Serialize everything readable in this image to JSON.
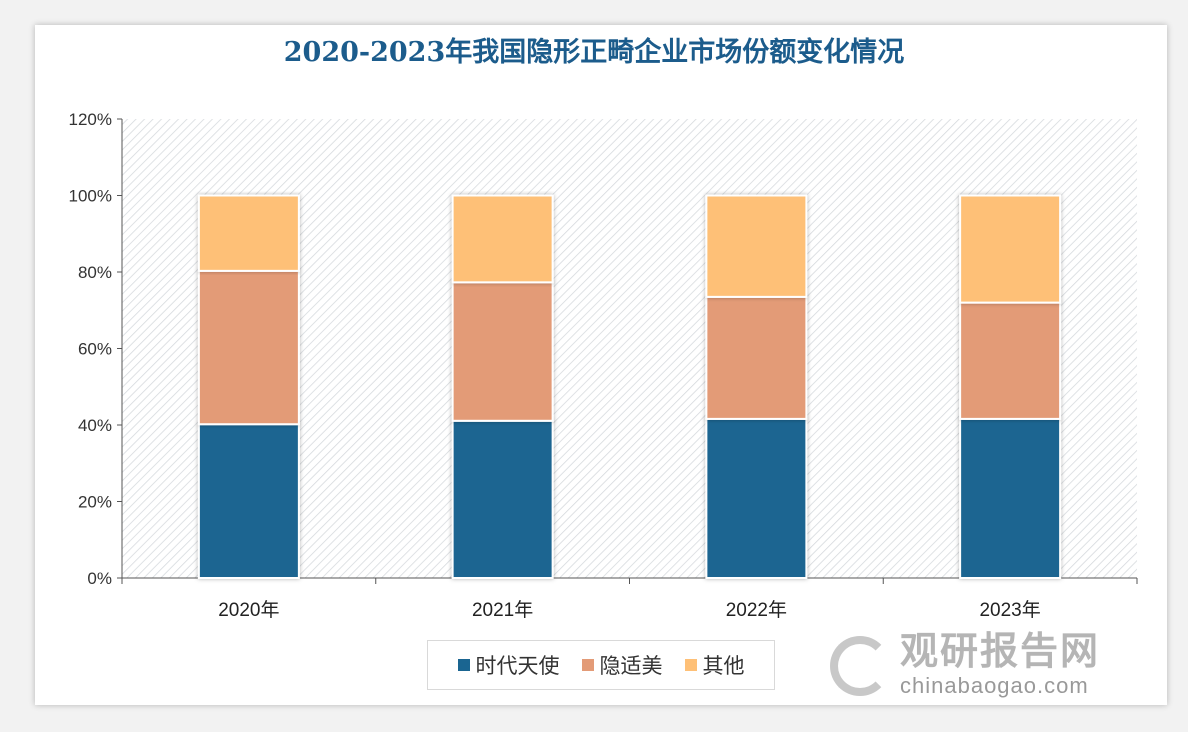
{
  "chart_data": {
    "type": "bar",
    "stacked": true,
    "title": "2020-2023年我国隐形正畸企业市场份额变化情况",
    "categories": [
      "2020年",
      "2021年",
      "2022年",
      "2023年"
    ],
    "series": [
      {
        "name": "时代天使",
        "color": "#1a6591",
        "values": [
          40.2,
          41.1,
          41.6,
          41.6
        ]
      },
      {
        "name": "隐适美",
        "color": "#e39b77",
        "values": [
          40.1,
          36.2,
          31.9,
          30.4
        ]
      },
      {
        "name": "其他",
        "color": "#fec077",
        "values": [
          19.7,
          22.7,
          26.5,
          28.0
        ]
      }
    ],
    "yticks": [
      "0%",
      "20%",
      "40%",
      "60%",
      "80%",
      "100%",
      "120%"
    ],
    "ylim": [
      0,
      120
    ],
    "xlabel": "",
    "ylabel": "",
    "legend": "bottom-center",
    "grid": false
  },
  "watermark": {
    "cn": "观研报告网",
    "en": "chinabaogao.com"
  }
}
